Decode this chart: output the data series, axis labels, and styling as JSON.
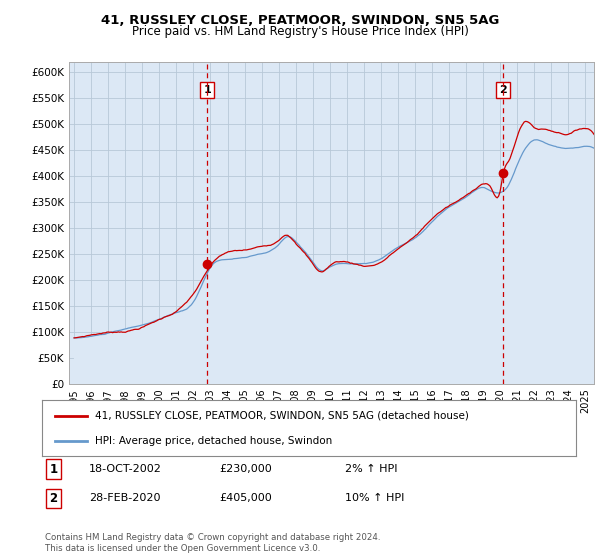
{
  "title": "41, RUSSLEY CLOSE, PEATMOOR, SWINDON, SN5 5AG",
  "subtitle": "Price paid vs. HM Land Registry's House Price Index (HPI)",
  "ylim": [
    0,
    620000
  ],
  "yticks": [
    0,
    50000,
    100000,
    150000,
    200000,
    250000,
    300000,
    350000,
    400000,
    450000,
    500000,
    550000,
    600000
  ],
  "ytick_labels": [
    "£0",
    "£50K",
    "£100K",
    "£150K",
    "£200K",
    "£250K",
    "£300K",
    "£350K",
    "£400K",
    "£450K",
    "£500K",
    "£550K",
    "£600K"
  ],
  "legend_line1": "41, RUSSLEY CLOSE, PEATMOOR, SWINDON, SN5 5AG (detached house)",
  "legend_line2": "HPI: Average price, detached house, Swindon",
  "annotation1_label": "1",
  "annotation1_date": "18-OCT-2002",
  "annotation1_price": "£230,000",
  "annotation1_hpi": "2% ↑ HPI",
  "annotation2_label": "2",
  "annotation2_date": "28-FEB-2020",
  "annotation2_price": "£405,000",
  "annotation2_hpi": "10% ↑ HPI",
  "footer": "Contains HM Land Registry data © Crown copyright and database right 2024.\nThis data is licensed under the Open Government Licence v3.0.",
  "line_color_red": "#cc0000",
  "line_color_blue": "#6699cc",
  "fill_color": "#dce8f5",
  "vline_color": "#cc0000",
  "bg_color": "#ffffff",
  "sale1_x": 2002.8,
  "sale1_y": 230000,
  "sale2_x": 2020.17,
  "sale2_y": 405000,
  "xtick_years": [
    1995,
    1996,
    1997,
    1998,
    1999,
    2000,
    2001,
    2002,
    2003,
    2004,
    2005,
    2006,
    2007,
    2008,
    2009,
    2010,
    2011,
    2012,
    2013,
    2014,
    2015,
    2016,
    2017,
    2018,
    2019,
    2020,
    2021,
    2022,
    2023,
    2024,
    2025
  ]
}
